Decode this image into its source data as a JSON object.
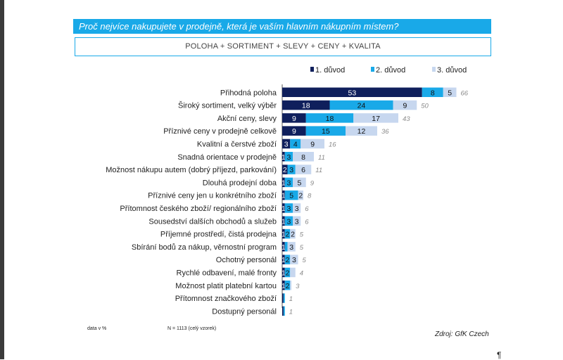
{
  "title": "Proč nejvíce nakupujete v prodejně, která je vaším hlavním nákupním místem?",
  "subtitle": "POLOHA + SORTIMENT  + SLEVY + CENY  + KVALITA",
  "footnote_left": "data v %",
  "footnote_sample": "N = 1113 (celý vzorek)",
  "source": "Zdroj: GfK Czech",
  "pilcrow": "¶",
  "chart_data": {
    "type": "bar",
    "orientation": "horizontal",
    "stacked": true,
    "legend_position": "top-right",
    "categories": [
      "Přihodná poloha",
      "Široký sortiment, velký výběr",
      "Akční ceny, slevy",
      "Příznivé ceny v prodejně celkově",
      "Kvalitní a čerstvé zboží",
      "Snadná orientace v prodejně",
      "Možnost nákupu autem (dobrý příjezd, parkování)",
      "Dlouhá prodejní doba",
      "Příznivé ceny jen u konkrétního zboží",
      "Přítomnost českého zboží/ regionálního zboží",
      "Sousedství dalších obchodů a služeb",
      "Příjemné prostředí, čistá prodejna",
      "Sbírání bodů za nákup, věrnostní program",
      "Ochotný personál",
      "Rychlé odbavení, malé fronty",
      "Možnost platit platební kartou",
      "Přítomnost značkového zboží",
      "Dostupný personál"
    ],
    "series": [
      {
        "name": "1. důvod",
        "color": "#0f1f5c",
        "values": [
          53,
          18,
          9,
          9,
          3,
          1,
          2,
          1,
          1,
          1,
          1,
          1,
          1,
          1,
          1,
          1,
          0.5,
          0.5
        ]
      },
      {
        "name": "2. důvod",
        "color": "#19a9e8",
        "values": [
          8,
          24,
          18,
          15,
          4,
          3,
          3,
          3,
          5,
          3,
          3,
          2,
          1,
          2,
          2,
          2,
          0.5,
          0.5
        ]
      },
      {
        "name": "3. důvod",
        "color": "#c7d7ef",
        "values": [
          5,
          9,
          17,
          12,
          9,
          8,
          6,
          5,
          2,
          3,
          3,
          2,
          3,
          3,
          2,
          0.5,
          0,
          0
        ]
      }
    ],
    "data_labels": [
      [
        "53",
        "8",
        "5"
      ],
      [
        "18",
        "24",
        "9"
      ],
      [
        "9",
        "18",
        "17"
      ],
      [
        "9",
        "15",
        "12"
      ],
      [
        "3",
        "4",
        "9"
      ],
      [
        "1",
        "3",
        "8"
      ],
      [
        "2",
        "3",
        "6"
      ],
      [
        "1",
        "3",
        "5"
      ],
      [
        "1",
        "5",
        "2"
      ],
      [
        "1",
        "3",
        "3"
      ],
      [
        "1",
        "3",
        "3"
      ],
      [
        "1",
        "2",
        "2"
      ],
      [
        "1",
        "",
        "3"
      ],
      [
        "1",
        "2",
        "3"
      ],
      [
        "1",
        "2",
        ""
      ],
      [
        "1",
        "2",
        ""
      ],
      [
        "",
        "",
        ""
      ],
      [
        "",
        "",
        ""
      ]
    ],
    "totals": [
      66,
      50,
      43,
      36,
      16,
      11,
      11,
      9,
      8,
      6,
      6,
      5,
      5,
      5,
      4,
      3,
      1,
      1
    ],
    "grid": false,
    "xlim": [
      0,
      80
    ]
  }
}
